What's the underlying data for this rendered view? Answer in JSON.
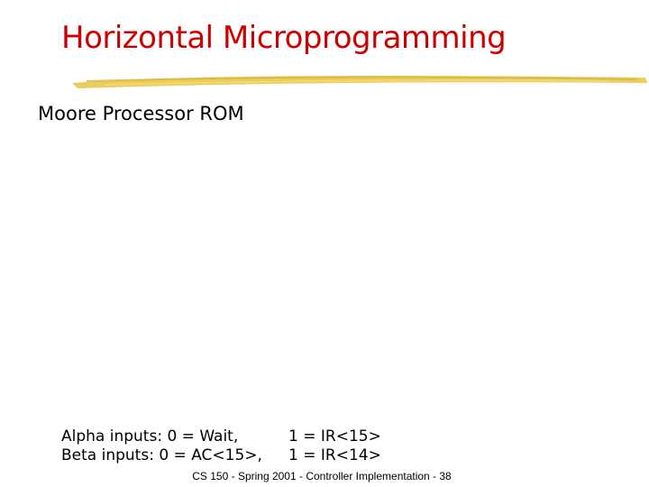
{
  "slide": {
    "title": "Horizontal Microprogramming",
    "bullet": "Moore Processor ROM",
    "inputs": [
      {
        "label": "Alpha inputs: 0 = Wait,",
        "alt": "1 = IR<15>"
      },
      {
        "label": "Beta inputs:  0 = AC<15>,",
        "alt": "1 = IR<14>"
      }
    ],
    "footer": "CS 150 - Spring 2001 - Controller Implementation - 38"
  },
  "colors": {
    "title": "#cc0000",
    "rule": "#e8c84a",
    "text": "#000000"
  }
}
